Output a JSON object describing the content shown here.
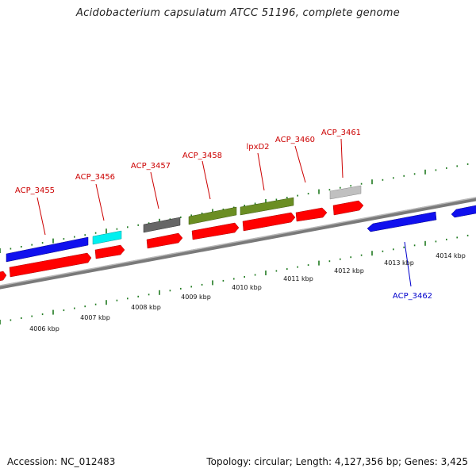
{
  "title": "Acidobacterium capsulatum ATCC 51196, complete genome",
  "accession": "Accession: NC_012483",
  "summary": "Topology: circular; Length: 4,127,356 bp; Genes: 3,425",
  "colors": {
    "backbone": "#8a8a8a",
    "tick": "#1f7a1f",
    "label_forward": "#cc0000",
    "label_reverse": "#0000cc",
    "cds": "#ff0000",
    "blue": "#1010ee",
    "cyan": "#00f0f0",
    "dark_grey": "#666666",
    "olive": "#6b8e23",
    "light_grey": "#c0c0c0"
  },
  "kbp_labels": [
    "4006 kbp",
    "4007 kbp",
    "4008 kbp",
    "4009 kbp",
    "4010 kbp",
    "4011 kbp",
    "4012 kbp",
    "4013 kbp",
    "4014 kbp"
  ],
  "gene_labels": [
    "ACP_3455",
    "ACP_3456",
    "ACP_3457",
    "ACP_3458",
    "lpxD2",
    "ACP_3460",
    "ACP_3461",
    "ACP_3462"
  ]
}
